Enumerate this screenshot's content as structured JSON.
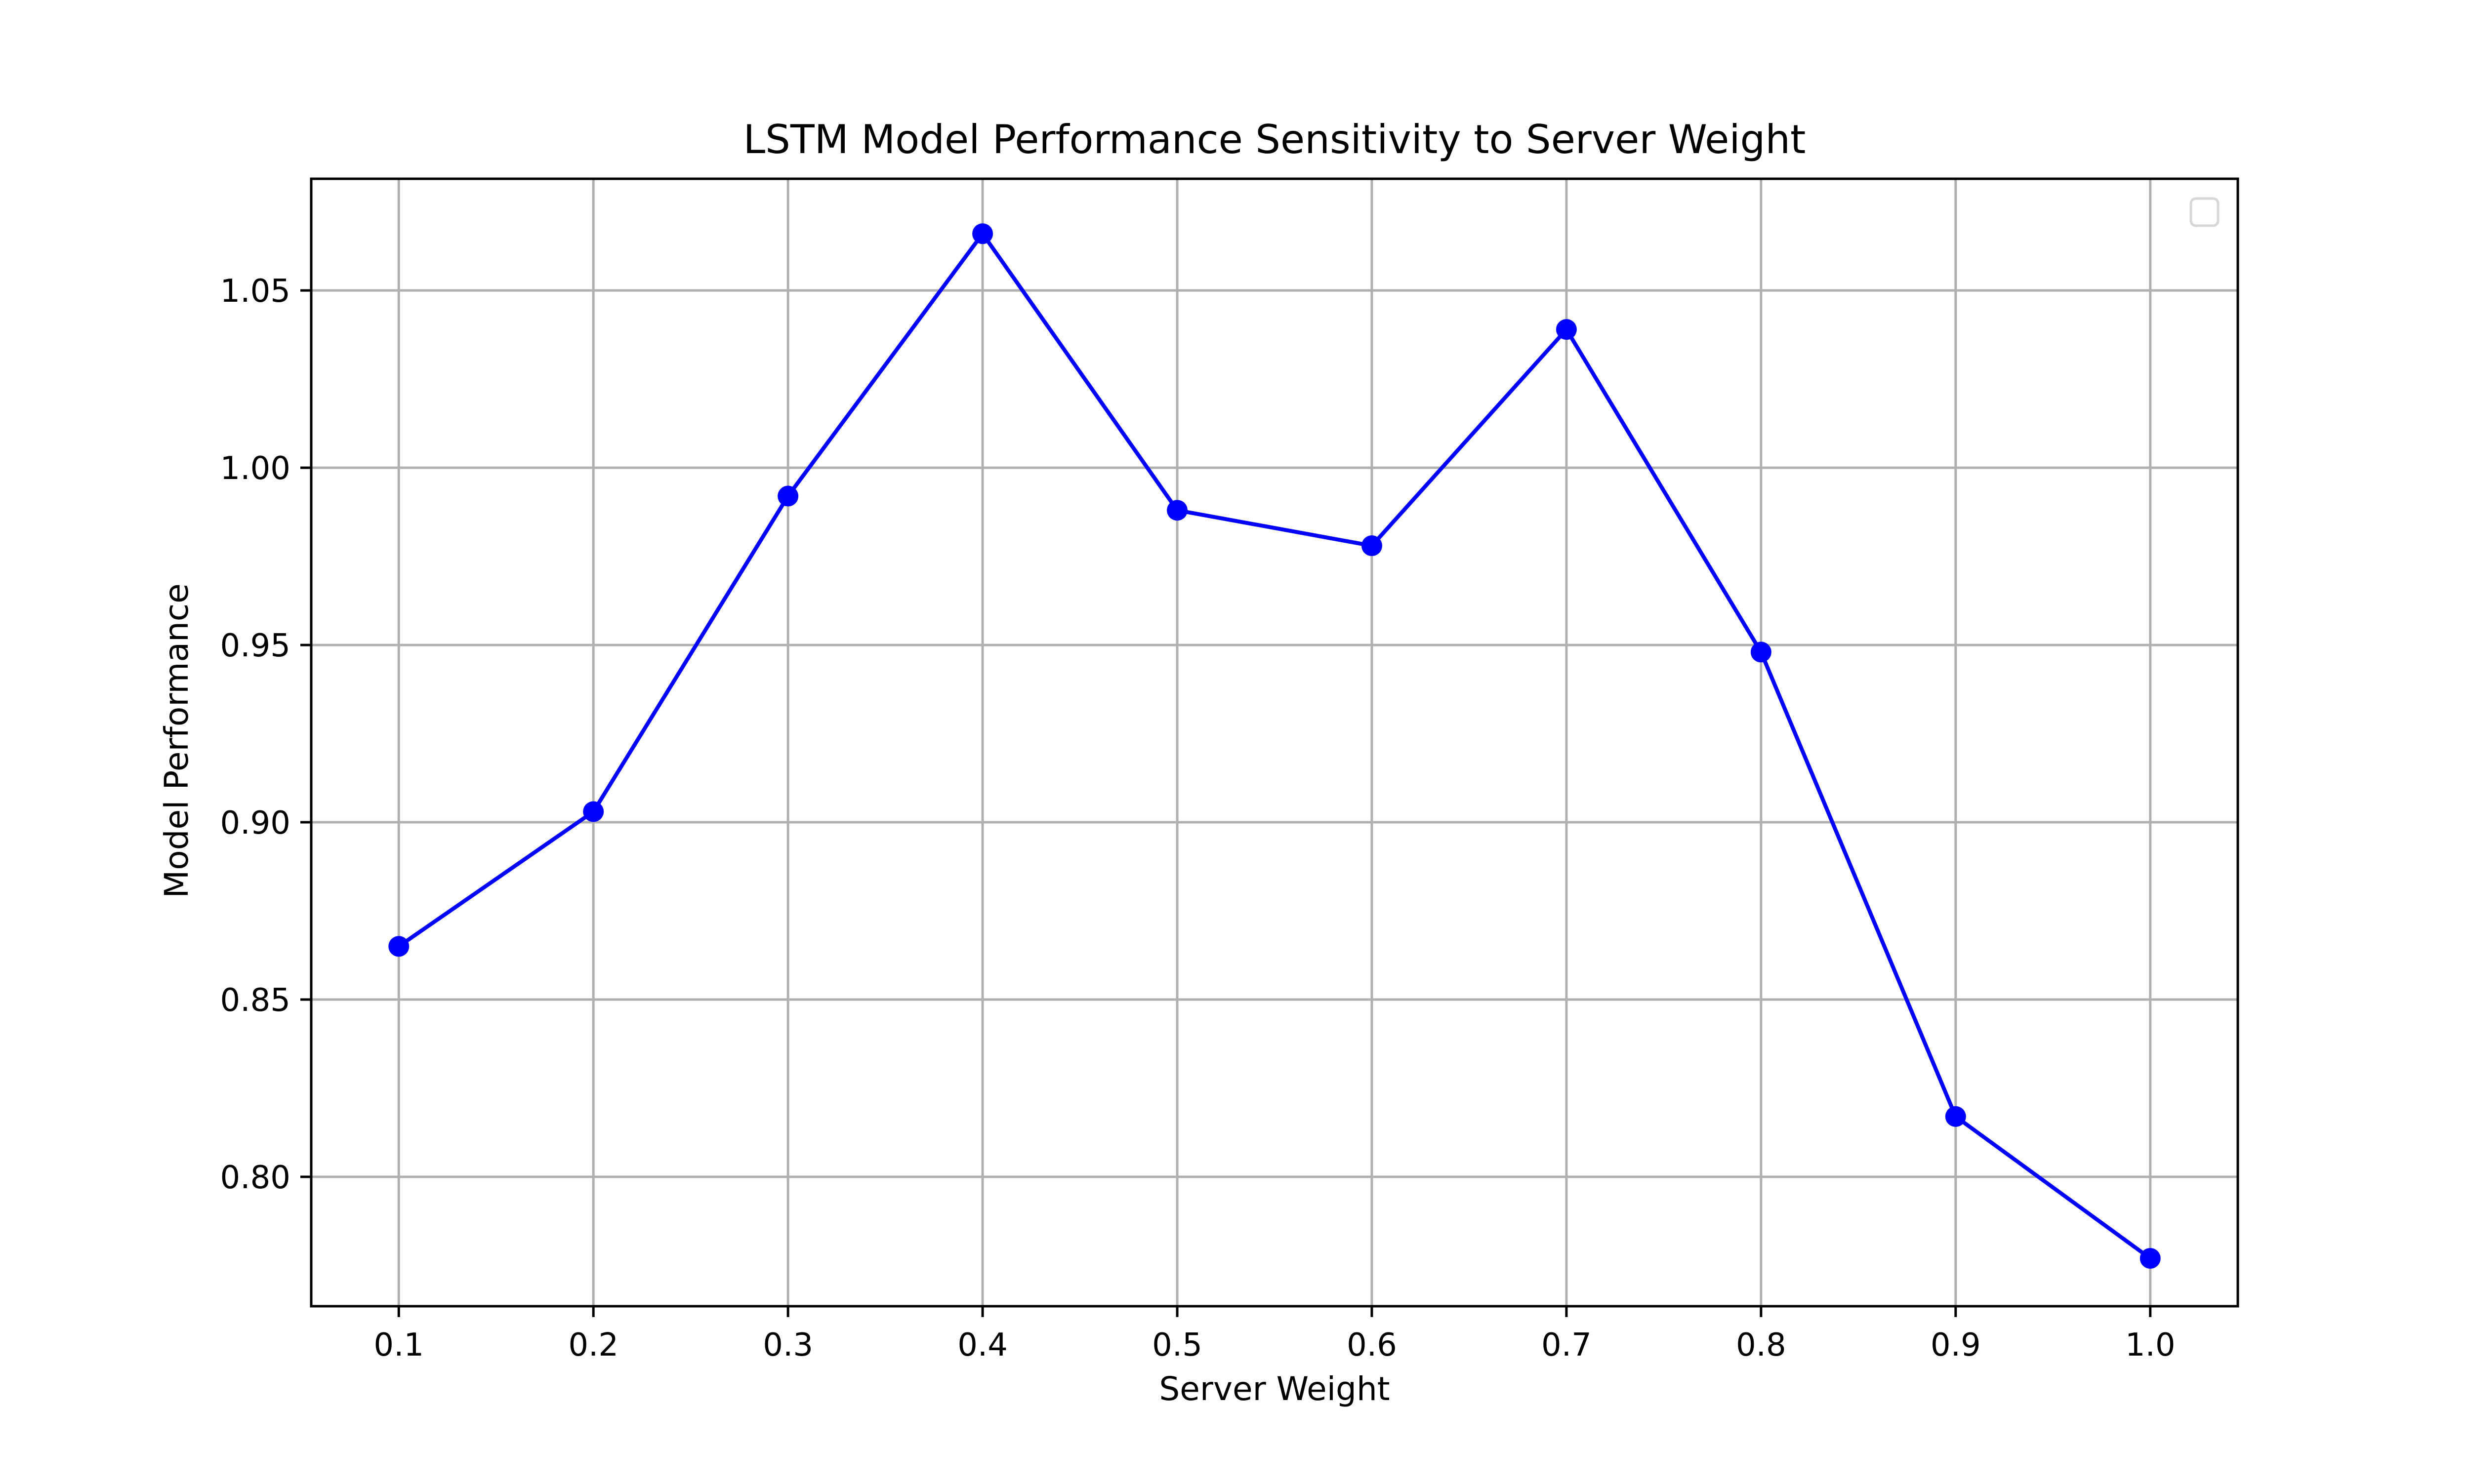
{
  "chart_data": {
    "type": "line",
    "title": "LSTM Model Performance Sensitivity to Server Weight",
    "xlabel": "Server Weight",
    "ylabel": "Model Performance",
    "x": [
      0.1,
      0.2,
      0.3,
      0.4,
      0.5,
      0.6,
      0.7,
      0.8,
      0.9,
      1.0
    ],
    "series": [
      {
        "values": [
          0.865,
          0.903,
          0.992,
          1.066,
          0.988,
          0.978,
          1.039,
          0.948,
          0.817,
          0.777
        ],
        "color": "#0000ff",
        "marker": "circle"
      }
    ],
    "xlim": [
      0.055,
      1.045
    ],
    "ylim": [
      0.7635,
      1.0815
    ],
    "xticks": [
      "0.1",
      "0.2",
      "0.3",
      "0.4",
      "0.5",
      "0.6",
      "0.7",
      "0.8",
      "0.9",
      "1.0"
    ],
    "yticks": [
      "0.80",
      "0.85",
      "0.90",
      "0.95",
      "1.00",
      "1.05"
    ],
    "grid": true,
    "legend": {
      "placement": "top-right",
      "entries": []
    },
    "colors": {
      "line": "#0000ff",
      "grid": "#b0b0b0",
      "frame": "#000000"
    }
  }
}
